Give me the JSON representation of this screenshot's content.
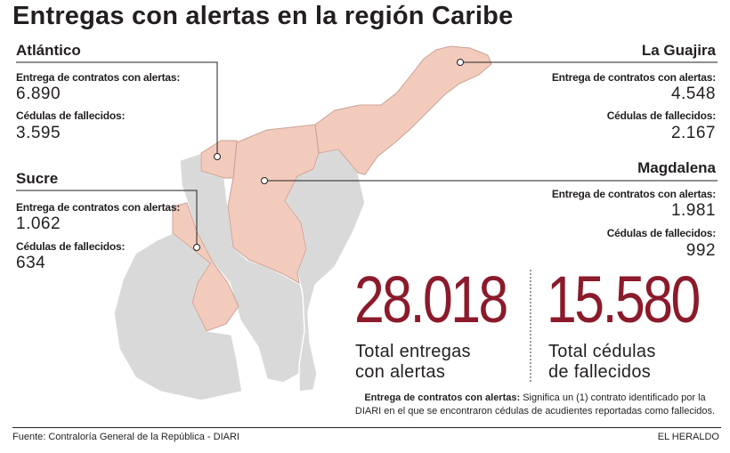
{
  "title": "Entregas con alertas en la región Caribe",
  "colors": {
    "highlight_fill": "#f2cbbd",
    "highlight_stroke": "#c9a295",
    "base_fill": "#d9d9d9",
    "base_stroke": "#ffffff",
    "accent_red": "#8b1a2b",
    "text": "#231f20"
  },
  "regions": {
    "atlantico": {
      "name": "Atlántico",
      "label_entregas": "Entrega de contratos con alertas:",
      "entregas": "6.890",
      "label_cedulas": "Cédulas de fallecidos:",
      "cedulas": "3.595"
    },
    "sucre": {
      "name": "Sucre",
      "label_entregas": "Entrega de contratos con alertas:",
      "entregas": "1.062",
      "label_cedulas": "Cédulas de fallecidos:",
      "cedulas": "634"
    },
    "la_guajira": {
      "name": "La Guajira",
      "label_entregas": "Entrega de contratos con alertas:",
      "entregas": "4.548",
      "label_cedulas": "Cédulas de fallecidos:",
      "cedulas": "2.167"
    },
    "magdalena": {
      "name": "Magdalena",
      "label_entregas": "Entrega de contratos con alertas:",
      "entregas": "1.981",
      "label_cedulas": "Cédulas de fallecidos:",
      "cedulas": "992"
    }
  },
  "totals": {
    "entregas": "28.018",
    "entregas_label_1": "Total entregas",
    "entregas_label_2": "con alertas",
    "cedulas": "15.580",
    "cedulas_label_1": "Total cédulas",
    "cedulas_label_2": "de fallecidos"
  },
  "note": {
    "title": "Entrega de contratos con alertas:",
    "text": " Significa un (1) contrato identificado por la DIARI en el que se encontraron cédulas de acudientes reportadas como fallecidos."
  },
  "footer": {
    "source": "Fuente: Contraloría General de la República - DIARI",
    "brand": "EL HERALDO"
  }
}
